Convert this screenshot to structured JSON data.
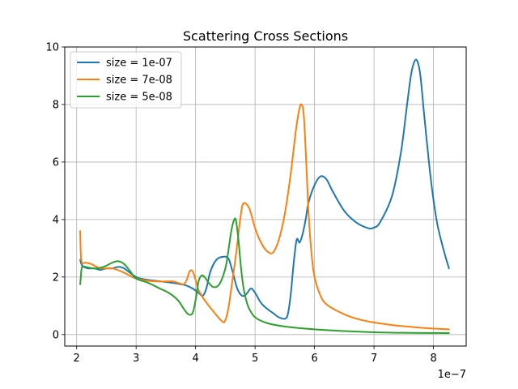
{
  "chart_data": {
    "type": "line",
    "title": "Scattering Cross Sections",
    "xlabel": "",
    "ylabel": "",
    "x_offset_label": "1e−7",
    "xlim": [
      1.8,
      8.55
    ],
    "ylim": [
      -0.4,
      10
    ],
    "x_ticks": [
      2,
      3,
      4,
      5,
      6,
      7,
      8
    ],
    "x_tick_labels": [
      "2",
      "3",
      "4",
      "5",
      "6",
      "7",
      "8"
    ],
    "y_ticks": [
      0,
      2,
      4,
      6,
      8,
      10
    ],
    "y_tick_labels": [
      "0",
      "2",
      "4",
      "6",
      "8",
      "10"
    ],
    "grid": true,
    "legend_position": "upper-left",
    "series": [
      {
        "name": "size = 1e-07",
        "color": "#1f77b4",
        "x": [
          2.06,
          2.08,
          2.12,
          2.2,
          2.3,
          2.4,
          2.5,
          2.6,
          2.7,
          2.8,
          3.0,
          3.2,
          3.4,
          3.6,
          3.75,
          3.85,
          3.95,
          4.05,
          4.12,
          4.18,
          4.25,
          4.35,
          4.45,
          4.55,
          4.62,
          4.7,
          4.78,
          4.85,
          4.93,
          5.0,
          5.1,
          5.2,
          5.3,
          5.4,
          5.5,
          5.55,
          5.6,
          5.65,
          5.7,
          5.75,
          5.8,
          5.85,
          5.9,
          6.0,
          6.1,
          6.2,
          6.3,
          6.5,
          6.7,
          6.9,
          7.0,
          7.1,
          7.3,
          7.45,
          7.55,
          7.62,
          7.68,
          7.73,
          7.78,
          7.85,
          7.95,
          8.05,
          8.15,
          8.26
        ],
        "y": [
          2.6,
          2.45,
          2.35,
          2.3,
          2.3,
          2.25,
          2.3,
          2.3,
          2.35,
          2.3,
          2.0,
          1.9,
          1.85,
          1.8,
          1.75,
          1.7,
          1.6,
          1.45,
          1.35,
          1.6,
          2.2,
          2.6,
          2.7,
          2.65,
          2.2,
          1.6,
          1.35,
          1.4,
          1.6,
          1.45,
          1.1,
          0.9,
          0.75,
          0.6,
          0.55,
          0.7,
          1.4,
          2.5,
          3.3,
          3.2,
          3.5,
          4.0,
          4.6,
          5.2,
          5.5,
          5.4,
          5.0,
          4.3,
          3.9,
          3.7,
          3.72,
          3.9,
          4.8,
          6.3,
          7.9,
          9.0,
          9.5,
          9.5,
          9.0,
          7.5,
          5.5,
          4.0,
          3.1,
          2.3
        ]
      },
      {
        "name": "size = 7e-08",
        "color": "#ff7f0e",
        "x": [
          2.06,
          2.07,
          2.09,
          2.15,
          2.25,
          2.4,
          2.6,
          2.8,
          3.0,
          3.3,
          3.6,
          3.7,
          3.8,
          3.85,
          3.9,
          3.95,
          4.0,
          4.05,
          4.15,
          4.3,
          4.45,
          4.5,
          4.55,
          4.6,
          4.68,
          4.75,
          4.8,
          4.9,
          5.0,
          5.1,
          5.2,
          5.3,
          5.4,
          5.5,
          5.6,
          5.68,
          5.74,
          5.78,
          5.82,
          5.86,
          5.9,
          5.95,
          6.0,
          6.1,
          6.2,
          6.4,
          6.6,
          6.8,
          7.0,
          7.3,
          7.6,
          7.9,
          8.26
        ],
        "y": [
          3.6,
          2.8,
          2.5,
          2.5,
          2.45,
          2.3,
          2.3,
          2.15,
          1.95,
          1.85,
          1.85,
          1.8,
          1.75,
          1.9,
          2.2,
          2.2,
          1.9,
          1.55,
          1.2,
          0.8,
          0.45,
          0.5,
          0.9,
          1.6,
          2.8,
          4.0,
          4.55,
          4.4,
          3.7,
          3.2,
          2.9,
          2.85,
          3.3,
          4.2,
          5.6,
          7.0,
          7.8,
          8.0,
          7.6,
          6.0,
          4.2,
          2.8,
          2.0,
          1.35,
          1.05,
          0.8,
          0.62,
          0.5,
          0.42,
          0.33,
          0.27,
          0.22,
          0.18
        ]
      },
      {
        "name": "size = 5e-08",
        "color": "#2ca02c",
        "x": [
          2.06,
          2.07,
          2.09,
          2.15,
          2.3,
          2.45,
          2.6,
          2.7,
          2.8,
          2.9,
          3.0,
          3.2,
          3.4,
          3.55,
          3.7,
          3.8,
          3.88,
          3.95,
          4.0,
          4.05,
          4.1,
          4.15,
          4.22,
          4.3,
          4.4,
          4.5,
          4.55,
          4.6,
          4.65,
          4.68,
          4.72,
          4.76,
          4.8,
          4.85,
          4.9,
          5.0,
          5.2,
          5.5,
          6.0,
          6.5,
          7.0,
          7.5,
          8.26
        ],
        "y": [
          1.75,
          2.0,
          2.35,
          2.35,
          2.3,
          2.35,
          2.5,
          2.55,
          2.45,
          2.2,
          1.95,
          1.8,
          1.6,
          1.45,
          1.2,
          0.9,
          0.7,
          0.75,
          1.2,
          1.85,
          2.05,
          2.0,
          1.8,
          1.65,
          1.75,
          2.3,
          2.9,
          3.6,
          4.0,
          3.95,
          3.3,
          2.4,
          1.7,
          1.2,
          0.9,
          0.6,
          0.4,
          0.28,
          0.18,
          0.12,
          0.08,
          0.06,
          0.05
        ]
      }
    ]
  }
}
